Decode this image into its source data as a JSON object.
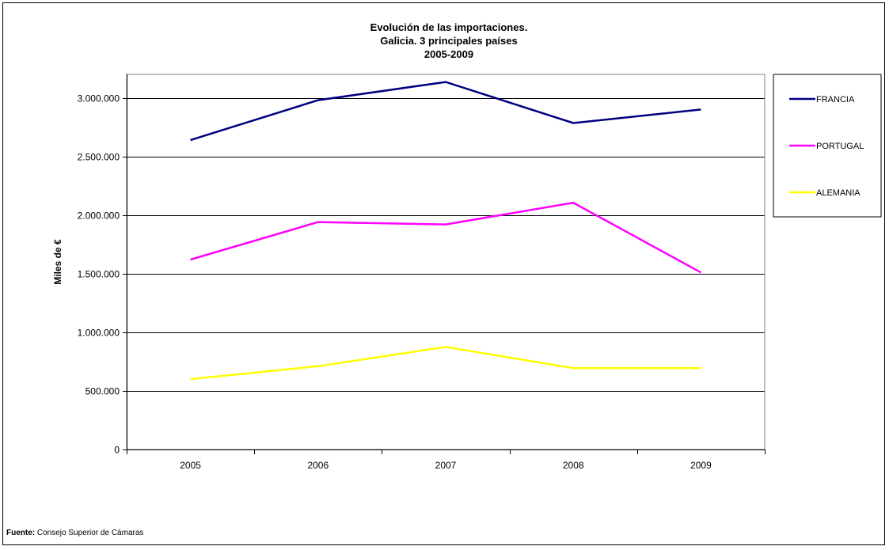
{
  "chart_data": {
    "type": "line",
    "title_lines": [
      "Evolución de las importaciones.",
      "Galicia. 3 principales países",
      "2005-2009"
    ],
    "xlabel": "",
    "ylabel": "Miles de €",
    "categories": [
      "2005",
      "2006",
      "2007",
      "2008",
      "2009"
    ],
    "ylim": [
      0,
      3200000
    ],
    "yticks": [
      0,
      500000,
      1000000,
      1500000,
      2000000,
      2500000,
      3000000
    ],
    "ytick_labels": [
      "0",
      "500.000",
      "1.000.000",
      "1.500.000",
      "2.000.000",
      "2.500.000",
      "3.000.000"
    ],
    "grid": true,
    "legend_position": "right",
    "series": [
      {
        "name": "FRANCIA",
        "color": "#000080",
        "values": [
          2640000,
          2980000,
          3135000,
          2785000,
          2900000
        ]
      },
      {
        "name": "PORTUGAL",
        "color": "#FF00FF",
        "values": [
          1620000,
          1940000,
          1920000,
          2105000,
          1510000
        ]
      },
      {
        "name": "ALEMANIA",
        "color": "#FFFF00",
        "values": [
          600000,
          710000,
          875000,
          695000,
          695000
        ]
      }
    ]
  },
  "footer": {
    "source_label": "Fuente:",
    "source_text": "Consejo Superior de Cámaras"
  }
}
